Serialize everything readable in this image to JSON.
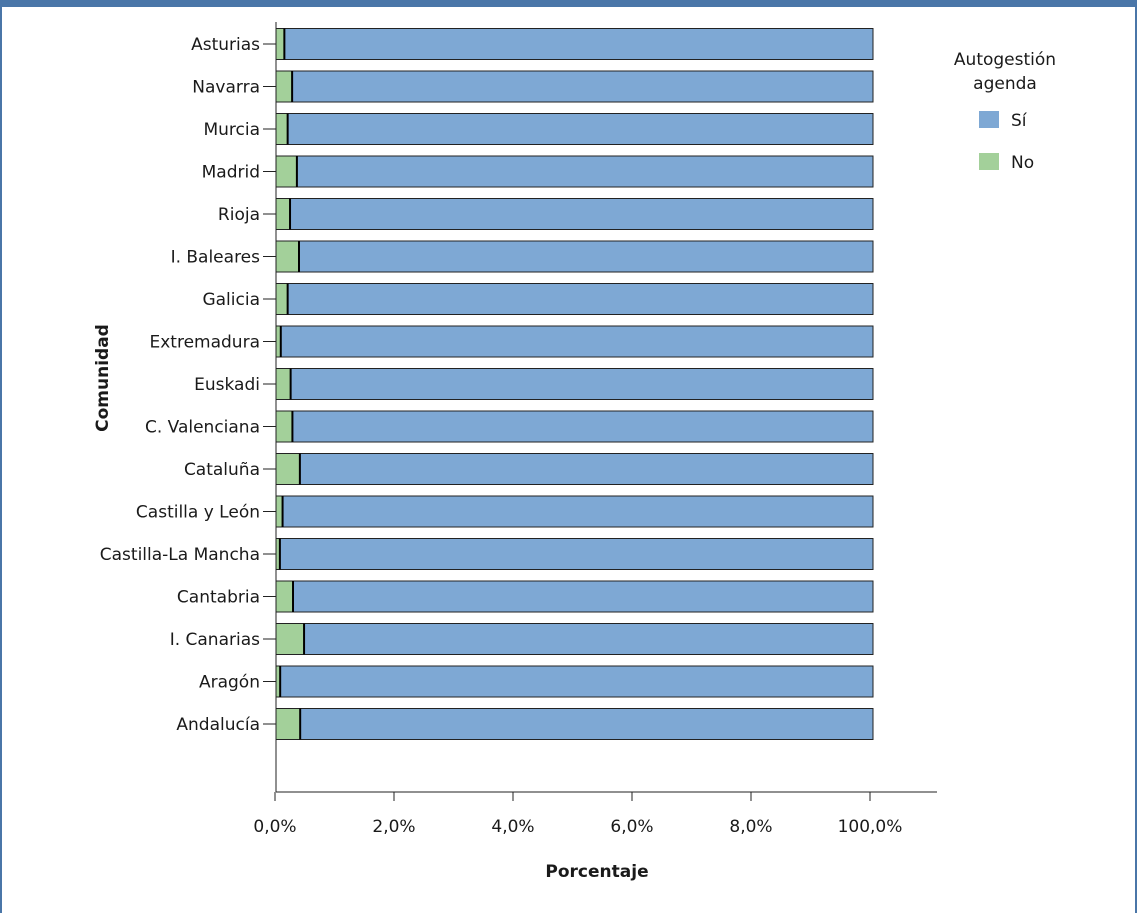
{
  "chart_data": {
    "type": "bar",
    "orientation": "horizontal",
    "stacked": true,
    "xlabel": "Porcentaje",
    "ylabel": "Comunidad",
    "x_tick_labels": [
      "0,0%",
      "2,0%",
      "4,0%",
      "6,0%",
      "8,0%",
      "100,0%"
    ],
    "x_range": [
      0,
      100
    ],
    "categories": [
      "Asturias",
      "Navarra",
      "Murcia",
      "Madrid",
      "Rioja",
      "I. Baleares",
      "Galicia",
      "Extremadura",
      "Euskadi",
      "C. Valenciana",
      "Cataluña",
      "Castilla y León",
      "Castilla-La Mancha",
      "Cantabria",
      "I. Canarias",
      "Aragón",
      "Andalucía"
    ],
    "series": [
      {
        "name": "No",
        "color": "#a3d09a",
        "values": [
          1.4,
          2.7,
          1.95,
          3.5,
          2.35,
          3.85,
          1.95,
          0.8,
          2.45,
          2.75,
          4.0,
          1.1,
          0.65,
          2.85,
          4.7,
          0.7,
          4.05
        ]
      },
      {
        "name": "Sí",
        "color": "#7ea8d4",
        "values": [
          98.6,
          97.3,
          98.05,
          96.5,
          97.65,
          96.15,
          98.05,
          99.2,
          97.55,
          97.25,
          96.0,
          98.9,
          99.35,
          97.15,
          95.3,
          99.3,
          95.95
        ]
      }
    ],
    "legend": {
      "title_line1": "Autogestión",
      "title_line2": "agenda",
      "entries": [
        "Sí",
        "No"
      ],
      "placement": "top-right"
    }
  }
}
